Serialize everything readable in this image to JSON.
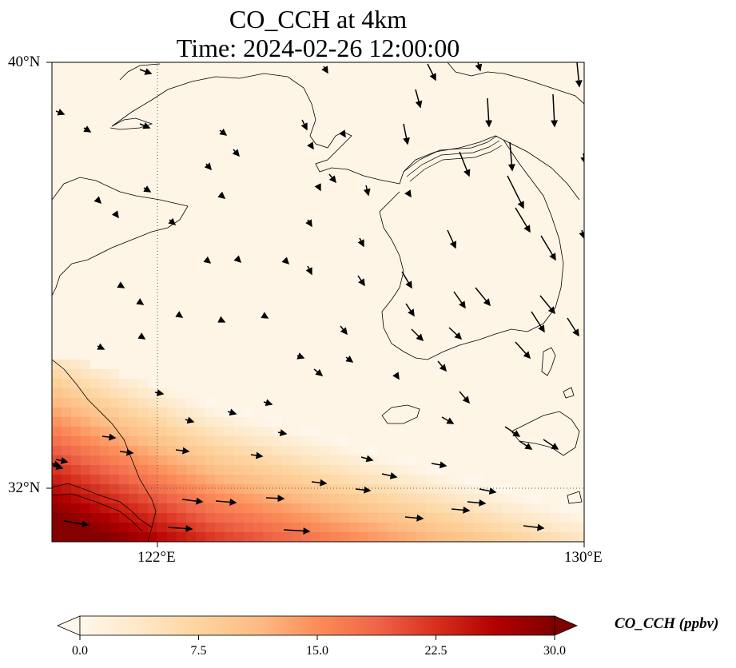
{
  "title": {
    "line1": "CO_CCH at 4km",
    "line2": "Time: 2024-02-26 12:00:00"
  },
  "axes": {
    "lat_labels": [
      "40°N",
      "32°N"
    ],
    "lon_labels": [
      "122°E",
      "130°E"
    ],
    "extent": {
      "lon_min": 120,
      "lon_max": 130,
      "lat_min": 31,
      "lat_max": 40
    },
    "gridlines": {
      "lon": [
        122
      ],
      "lat": [
        32
      ],
      "style": "dotted"
    }
  },
  "colorbar": {
    "label": "CO_CCH (ppbv)",
    "ticks": [
      "0.0",
      "7.5",
      "15.0",
      "22.5",
      "30.0"
    ],
    "range": [
      0,
      30
    ],
    "colormap": "OrRd",
    "stops": [
      "#fff7ec",
      "#fee8c8",
      "#fdd49e",
      "#fdbb84",
      "#fc8d59",
      "#ef6548",
      "#d7301f",
      "#b30000",
      "#7f0000"
    ],
    "extend": "both"
  },
  "chart_data": {
    "type": "heatmap",
    "variable": "CO_CCH",
    "units": "ppbv",
    "level": "4km",
    "time": "2024-02-26 12:00:00",
    "field_description_points": [
      {
        "lon": 120.5,
        "lat": 31.2,
        "value": 28
      },
      {
        "lon": 122.0,
        "lat": 31.2,
        "value": 30
      },
      {
        "lon": 124.0,
        "lat": 31.3,
        "value": 24
      },
      {
        "lon": 126.0,
        "lat": 31.3,
        "value": 14
      },
      {
        "lon": 128.0,
        "lat": 31.5,
        "value": 8
      },
      {
        "lon": 120.5,
        "lat": 33.0,
        "value": 15
      },
      {
        "lon": 122.0,
        "lat": 32.5,
        "value": 16
      },
      {
        "lon": 124.0,
        "lat": 32.0,
        "value": 10
      },
      {
        "lon": 120.5,
        "lat": 34.5,
        "value": 3
      },
      {
        "lon": 125.0,
        "lat": 36.0,
        "value": 1
      },
      {
        "lon": 128.0,
        "lat": 38.0,
        "value": 1
      }
    ],
    "wind_vectors": "black arrows, predominantly from northwest to southeast in north, westerly in south"
  }
}
